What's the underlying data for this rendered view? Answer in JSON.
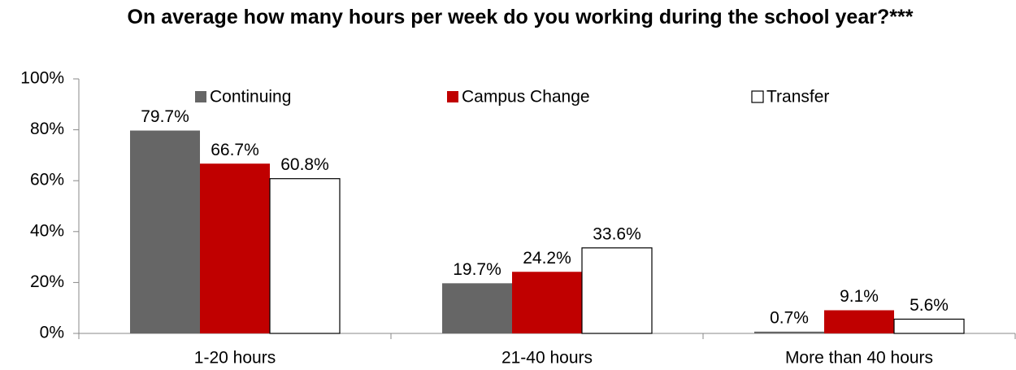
{
  "chart_data": {
    "type": "bar",
    "title": "On average how many hours per week do you working during the school year?***",
    "categories": [
      "1-20 hours",
      "21-40 hours",
      "More than 40 hours"
    ],
    "series": [
      {
        "name": "Continuing",
        "color": "#666666",
        "values": [
          79.7,
          19.7,
          0.7
        ],
        "value_labels": [
          "79.7%",
          "19.7%",
          "0.7%"
        ]
      },
      {
        "name": "Campus Change",
        "color": "#c00000",
        "values": [
          66.7,
          24.2,
          9.1
        ],
        "value_labels": [
          "66.7%",
          "24.2%",
          "9.1%"
        ]
      },
      {
        "name": "Transfer",
        "color": "#ffffff",
        "values": [
          60.8,
          33.6,
          5.6
        ],
        "value_labels": [
          "60.8%",
          "33.6%",
          "5.6%"
        ]
      }
    ],
    "ylim": [
      0,
      100
    ],
    "yticks": [
      {
        "value": 0,
        "label": "0%"
      },
      {
        "value": 20,
        "label": "20%"
      },
      {
        "value": 40,
        "label": "40%"
      },
      {
        "value": 60,
        "label": "60%"
      },
      {
        "value": 80,
        "label": "80%"
      },
      {
        "value": 100,
        "label": "100%"
      }
    ],
    "legend": "top"
  }
}
